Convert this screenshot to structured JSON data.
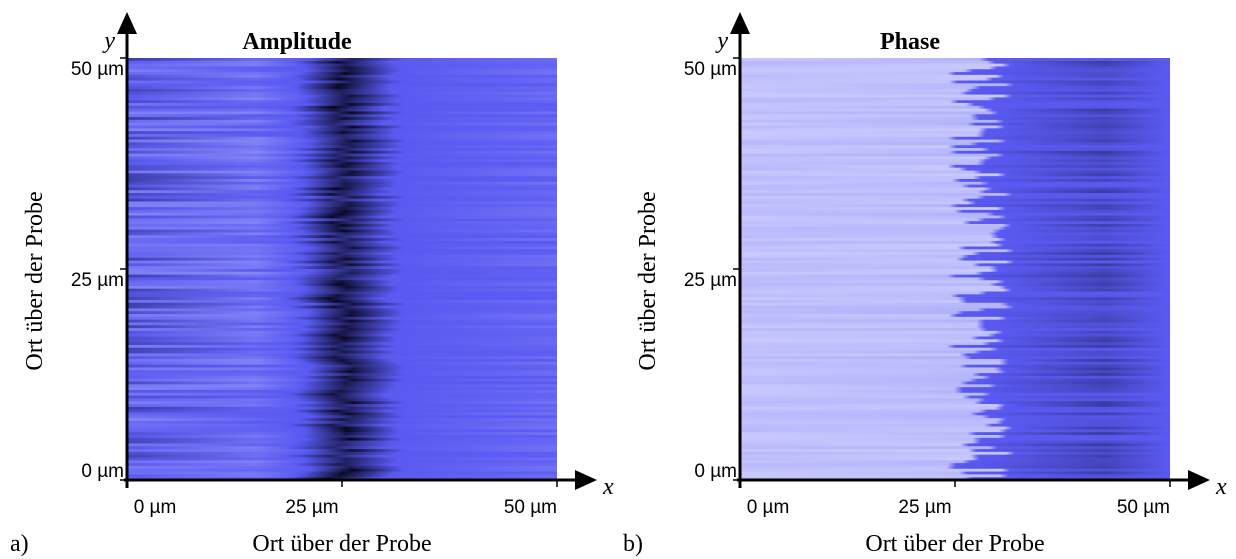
{
  "chart_data": [
    {
      "type": "heatmap",
      "panel_label": "a)",
      "title": "Amplitude",
      "xlabel": "Ort über der Probe",
      "ylabel": "Ort über der Probe",
      "x_symbol": "x",
      "y_symbol": "y",
      "xlim": [
        0,
        50
      ],
      "ylim": [
        0,
        50
      ],
      "xticks": [
        {
          "value": 0,
          "label": "0 µm"
        },
        {
          "value": 25,
          "label": "25 µm"
        },
        {
          "value": 50,
          "label": "50 µm"
        }
      ],
      "yticks": [
        {
          "value": 0,
          "label": "0 µm"
        },
        {
          "value": 25,
          "label": "25 µm"
        },
        {
          "value": 50,
          "label": "50 µm"
        }
      ],
      "colors": [
        "#d6d6ff",
        "#5a5af2",
        "#06061e"
      ]
    },
    {
      "type": "heatmap",
      "panel_label": "b)",
      "title": "Phase",
      "xlabel": "Ort über der Probe",
      "ylabel": "Ort über der Probe",
      "x_symbol": "x",
      "y_symbol": "y",
      "xlim": [
        0,
        50
      ],
      "ylim": [
        0,
        50
      ],
      "xticks": [
        {
          "value": 0,
          "label": "0 µm"
        },
        {
          "value": 25,
          "label": "25 µm"
        },
        {
          "value": 50,
          "label": "50 µm"
        }
      ],
      "yticks": [
        {
          "value": 0,
          "label": "0 µm"
        },
        {
          "value": 25,
          "label": "25 µm"
        },
        {
          "value": 50,
          "label": "50 µm"
        }
      ],
      "colors": [
        "#d6d6ff",
        "#5a5af2",
        "#06061e"
      ]
    }
  ]
}
